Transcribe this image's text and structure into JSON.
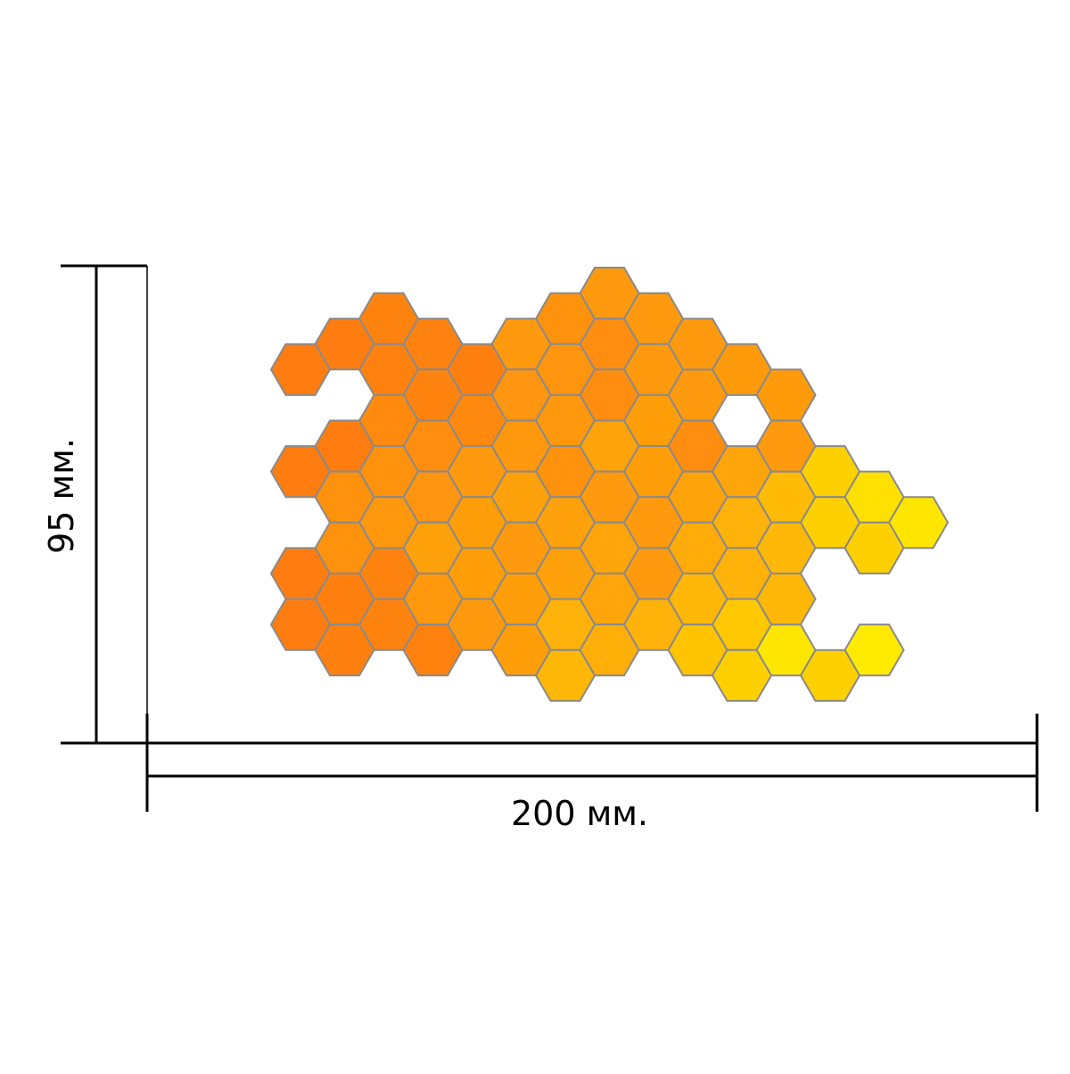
{
  "dimensions": {
    "height_label": "95 мм.",
    "width_label": "200 мм."
  },
  "colors": {
    "hex_stroke": "#8a8a8a",
    "dimension_line": "#000000",
    "background": "#ffffff"
  },
  "panel": {
    "shape": "hexagon",
    "rows": [
      {
        "row": 0,
        "cells": [
          {
            "col": 7,
            "color": "#ff9a0e"
          }
        ]
      },
      {
        "row": 1,
        "cells": [
          {
            "col": 2,
            "color": "#ff830f"
          },
          {
            "col": 6,
            "color": "#ff920c"
          },
          {
            "col": 8,
            "color": "#ff9a0e"
          }
        ]
      },
      {
        "row": 2,
        "cells": [
          {
            "col": 1,
            "color": "#ff7d10"
          },
          {
            "col": 3,
            "color": "#ff8211"
          },
          {
            "col": 5,
            "color": "#ff9a0e"
          },
          {
            "col": 7,
            "color": "#ff8e10"
          }
        ]
      },
      {
        "row": 3,
        "cells": [
          {
            "col": 2,
            "color": "#ff8211"
          },
          {
            "col": 4,
            "color": "#ff800f"
          },
          {
            "col": 6,
            "color": "#ff950e"
          },
          {
            "col": 8,
            "color": "#ff9a0e"
          },
          {
            "col": 10,
            "color": "#ff9b0a"
          }
        ]
      },
      {
        "row": 4,
        "cells": [
          {
            "col": 3,
            "color": "#ff840f"
          },
          {
            "col": 5,
            "color": "#ff9510"
          },
          {
            "col": 7,
            "color": "#ff8d10"
          },
          {
            "col": 9,
            "color": "#ff9a0e"
          }
        ]
      },
      {
        "row": 5,
        "cells": [
          {
            "col": 2,
            "color": "#ff8a0d"
          },
          {
            "col": 4,
            "color": "#ff890f"
          },
          {
            "col": 6,
            "color": "#ff980d"
          },
          {
            "col": 8,
            "color": "#ff9e08"
          }
        ]
      },
      {
        "row": 6,
        "cells": [
          {
            "col": 1,
            "color": "#ff7d10"
          },
          {
            "col": 3,
            "color": "#ff8d10"
          },
          {
            "col": 5,
            "color": "#ff980d"
          },
          {
            "col": 7,
            "color": "#ffa30b"
          },
          {
            "col": 9,
            "color": "#ff8e10"
          }
        ]
      },
      {
        "row": 7,
        "cells": [
          {
            "col": 0,
            "color": "#ff7d10"
          },
          {
            "col": 2,
            "color": "#ff920c"
          },
          {
            "col": 4,
            "color": "#ff9a0e"
          },
          {
            "col": 6,
            "color": "#ff920c"
          },
          {
            "col": 8,
            "color": "#ff9e08"
          },
          {
            "col": 10,
            "color": "#ffa50c"
          },
          {
            "col": 12,
            "color": "#ffd000"
          }
        ]
      },
      {
        "row": 8,
        "cells": [
          {
            "col": 1,
            "color": "#ff920c"
          },
          {
            "col": 3,
            "color": "#ff9510"
          },
          {
            "col": 5,
            "color": "#ffa10b"
          },
          {
            "col": 7,
            "color": "#ff9a0e"
          },
          {
            "col": 9,
            "color": "#ffa30b"
          },
          {
            "col": 11,
            "color": "#ffbb05"
          },
          {
            "col": 13,
            "color": "#ffe000"
          }
        ]
      },
      {
        "row": 9,
        "cells": [
          {
            "col": 2,
            "color": "#ff980d"
          },
          {
            "col": 4,
            "color": "#ff9e08"
          },
          {
            "col": 6,
            "color": "#ffa10b"
          },
          {
            "col": 8,
            "color": "#ff9a0e"
          },
          {
            "col": 10,
            "color": "#ffb20a"
          },
          {
            "col": 12,
            "color": "#ffd000"
          }
        ]
      },
      {
        "row": 10,
        "cells": [
          {
            "col": 1,
            "color": "#ff920c"
          },
          {
            "col": 3,
            "color": "#ffa10b"
          },
          {
            "col": 5,
            "color": "#ff9a0e"
          },
          {
            "col": 7,
            "color": "#ffa50c"
          },
          {
            "col": 9,
            "color": "#ffab0a"
          },
          {
            "col": 11,
            "color": "#ffb807"
          }
        ]
      },
      {
        "row": 11,
        "cells": [
          {
            "col": 0,
            "color": "#ff7d10"
          },
          {
            "col": 2,
            "color": "#ff830f"
          },
          {
            "col": 4,
            "color": "#ff9e08"
          },
          {
            "col": 6,
            "color": "#ffa10b"
          },
          {
            "col": 8,
            "color": "#ff9a0e"
          },
          {
            "col": 10,
            "color": "#ffb20a"
          }
        ]
      },
      {
        "row": 12,
        "cells": [
          {
            "col": 1,
            "color": "#ff800f"
          },
          {
            "col": 3,
            "color": "#ff980d"
          },
          {
            "col": 5,
            "color": "#ff9e08"
          },
          {
            "col": 7,
            "color": "#ffa50c"
          },
          {
            "col": 9,
            "color": "#ffb807"
          }
        ]
      },
      {
        "row": 13,
        "cells": [
          {
            "col": 0,
            "color": "#ff7d10"
          },
          {
            "col": 2,
            "color": "#ff830f"
          },
          {
            "col": 4,
            "color": "#ff9a0e"
          },
          {
            "col": 6,
            "color": "#ffb20a"
          },
          {
            "col": 8,
            "color": "#ffb20a"
          },
          {
            "col": 10,
            "color": "#ffc800"
          }
        ]
      },
      {
        "row": 14,
        "cells": [
          {
            "col": 1,
            "color": "#ff800f"
          },
          {
            "col": 3,
            "color": "#ff820f"
          },
          {
            "col": 5,
            "color": "#ff9e08"
          },
          {
            "col": 7,
            "color": "#ffaf08"
          },
          {
            "col": 9,
            "color": "#ffc300"
          },
          {
            "col": 11,
            "color": "#ffe600"
          }
        ]
      },
      {
        "row": 15,
        "cells": [
          {
            "col": 6,
            "color": "#ffb807"
          },
          {
            "col": 10,
            "color": "#ffd000"
          }
        ]
      }
    ],
    "extra_cells": [
      {
        "row": 2,
        "col": 9,
        "color": "#ff9a0e"
      },
      {
        "row": 3,
        "col": 0,
        "color": "#ff7d10"
      },
      {
        "row": 4,
        "col": 11,
        "color": "#ff9b0a"
      },
      {
        "row": 6,
        "col": 11,
        "color": "#ff9a0e"
      },
      {
        "row": 8,
        "col": 13,
        "color": "#ffe000"
      },
      {
        "row": 9,
        "col": 14,
        "color": "#ffe600"
      },
      {
        "row": 10,
        "col": 13,
        "color": "#ffd000"
      },
      {
        "row": 12,
        "col": 11,
        "color": "#ffb807"
      },
      {
        "row": 14,
        "col": 13,
        "color": "#ffea00"
      },
      {
        "row": 15,
        "col": 12,
        "color": "#ffd000"
      }
    ]
  }
}
